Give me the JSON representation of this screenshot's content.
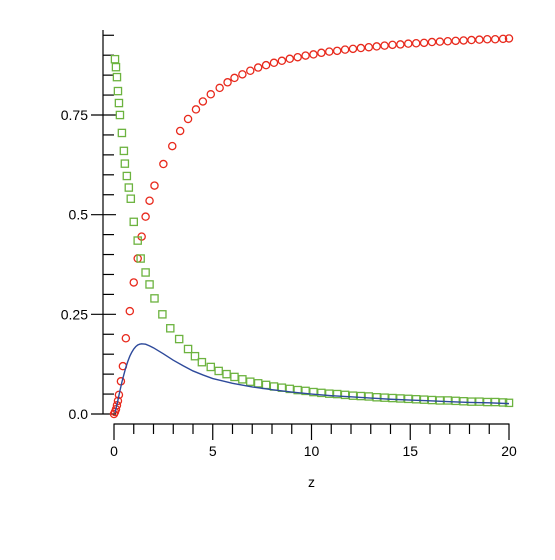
{
  "chart_data": {
    "type": "scatter",
    "xlabel": "z",
    "ylabel": "",
    "xlim": [
      0,
      20
    ],
    "ylim": [
      0,
      0.95
    ],
    "x_ticks": [
      0,
      5,
      10,
      15,
      20
    ],
    "x_tick_labels": [
      "0",
      "5",
      "10",
      "15",
      "20"
    ],
    "y_ticks": [
      0,
      0.25,
      0.5,
      0.75
    ],
    "y_tick_labels": [
      "0.0",
      "0.25",
      "0.5",
      "0.75"
    ],
    "x_minor_step": 1,
    "y_minor_step": 0.05,
    "grid": false,
    "legend": "none",
    "series": [
      {
        "marker": "circle-open",
        "color": "#e8291c",
        "points": [
          [
            0.0,
            0.0
          ],
          [
            0.05,
            0.005
          ],
          [
            0.1,
            0.012
          ],
          [
            0.15,
            0.022
          ],
          [
            0.2,
            0.033
          ],
          [
            0.25,
            0.048
          ],
          [
            0.35,
            0.082
          ],
          [
            0.45,
            0.12
          ],
          [
            0.6,
            0.19
          ],
          [
            0.8,
            0.258
          ],
          [
            1.0,
            0.33
          ],
          [
            1.2,
            0.39
          ],
          [
            1.4,
            0.445
          ],
          [
            1.6,
            0.495
          ],
          [
            1.8,
            0.535
          ],
          [
            2.05,
            0.573
          ],
          [
            2.5,
            0.627
          ],
          [
            2.95,
            0.672
          ],
          [
            3.35,
            0.71
          ],
          [
            3.75,
            0.74
          ],
          [
            4.15,
            0.764
          ],
          [
            4.5,
            0.784
          ],
          [
            4.9,
            0.802
          ],
          [
            5.35,
            0.818
          ],
          [
            5.75,
            0.832
          ],
          [
            6.1,
            0.843
          ],
          [
            6.5,
            0.852
          ],
          [
            6.9,
            0.861
          ],
          [
            7.3,
            0.869
          ],
          [
            7.7,
            0.875
          ],
          [
            8.1,
            0.881
          ],
          [
            8.5,
            0.886
          ],
          [
            8.9,
            0.891
          ],
          [
            9.3,
            0.895
          ],
          [
            9.7,
            0.899
          ],
          [
            10.1,
            0.902
          ],
          [
            10.5,
            0.906
          ],
          [
            10.9,
            0.909
          ],
          [
            11.3,
            0.911
          ],
          [
            11.7,
            0.914
          ],
          [
            12.1,
            0.916
          ],
          [
            12.5,
            0.918
          ],
          [
            12.9,
            0.92
          ],
          [
            13.3,
            0.922
          ],
          [
            13.7,
            0.924
          ],
          [
            14.1,
            0.926
          ],
          [
            14.5,
            0.927
          ],
          [
            14.9,
            0.929
          ],
          [
            15.3,
            0.93
          ],
          [
            15.7,
            0.931
          ],
          [
            16.1,
            0.933
          ],
          [
            16.5,
            0.934
          ],
          [
            16.9,
            0.935
          ],
          [
            17.3,
            0.936
          ],
          [
            17.7,
            0.937
          ],
          [
            18.1,
            0.938
          ],
          [
            18.5,
            0.939
          ],
          [
            18.9,
            0.94
          ],
          [
            19.3,
            0.94
          ],
          [
            19.7,
            0.941
          ],
          [
            20.0,
            0.942
          ]
        ]
      },
      {
        "marker": "square-open",
        "color": "#6cb33f",
        "points": [
          [
            0.05,
            0.89
          ],
          [
            0.1,
            0.87
          ],
          [
            0.15,
            0.845
          ],
          [
            0.2,
            0.81
          ],
          [
            0.25,
            0.78
          ],
          [
            0.3,
            0.75
          ],
          [
            0.4,
            0.705
          ],
          [
            0.5,
            0.66
          ],
          [
            0.55,
            0.628
          ],
          [
            0.65,
            0.597
          ],
          [
            0.75,
            0.568
          ],
          [
            0.85,
            0.54
          ],
          [
            1.0,
            0.482
          ],
          [
            1.2,
            0.435
          ],
          [
            1.35,
            0.39
          ],
          [
            1.6,
            0.355
          ],
          [
            1.8,
            0.325
          ],
          [
            2.05,
            0.29
          ],
          [
            2.45,
            0.25
          ],
          [
            2.85,
            0.215
          ],
          [
            3.3,
            0.188
          ],
          [
            3.75,
            0.163
          ],
          [
            4.1,
            0.145
          ],
          [
            4.45,
            0.13
          ],
          [
            4.9,
            0.118
          ],
          [
            5.3,
            0.108
          ],
          [
            5.7,
            0.1
          ],
          [
            6.1,
            0.093
          ],
          [
            6.5,
            0.087
          ],
          [
            6.9,
            0.081
          ],
          [
            7.3,
            0.077
          ],
          [
            7.7,
            0.073
          ],
          [
            8.1,
            0.069
          ],
          [
            8.5,
            0.066
          ],
          [
            8.9,
            0.063
          ],
          [
            9.3,
            0.06
          ],
          [
            9.7,
            0.058
          ],
          [
            10.1,
            0.055
          ],
          [
            10.5,
            0.053
          ],
          [
            10.9,
            0.051
          ],
          [
            11.3,
            0.05
          ],
          [
            11.7,
            0.048
          ],
          [
            12.1,
            0.046
          ],
          [
            12.5,
            0.045
          ],
          [
            12.9,
            0.044
          ],
          [
            13.3,
            0.042
          ],
          [
            13.7,
            0.041
          ],
          [
            14.1,
            0.04
          ],
          [
            14.5,
            0.039
          ],
          [
            14.9,
            0.038
          ],
          [
            15.3,
            0.037
          ],
          [
            15.7,
            0.036
          ],
          [
            16.1,
            0.035
          ],
          [
            16.5,
            0.034
          ],
          [
            16.9,
            0.034
          ],
          [
            17.3,
            0.033
          ],
          [
            17.7,
            0.032
          ],
          [
            18.1,
            0.031
          ],
          [
            18.5,
            0.031
          ],
          [
            18.9,
            0.03
          ],
          [
            19.3,
            0.03
          ],
          [
            19.7,
            0.029
          ],
          [
            20.0,
            0.028
          ]
        ]
      },
      {
        "marker": "line",
        "color": "#2e4a9b",
        "points": [
          [
            0.05,
            0.004
          ],
          [
            0.1,
            0.013
          ],
          [
            0.2,
            0.035
          ],
          [
            0.3,
            0.058
          ],
          [
            0.4,
            0.08
          ],
          [
            0.5,
            0.099
          ],
          [
            0.6,
            0.117
          ],
          [
            0.7,
            0.132
          ],
          [
            0.8,
            0.145
          ],
          [
            0.9,
            0.155
          ],
          [
            1.0,
            0.163
          ],
          [
            1.1,
            0.169
          ],
          [
            1.2,
            0.173
          ],
          [
            1.3,
            0.175
          ],
          [
            1.4,
            0.176
          ],
          [
            1.6,
            0.175
          ],
          [
            1.8,
            0.171
          ],
          [
            2.0,
            0.166
          ],
          [
            2.5,
            0.151
          ],
          [
            3.0,
            0.135
          ],
          [
            3.5,
            0.121
          ],
          [
            4.0,
            0.108
          ],
          [
            4.5,
            0.098
          ],
          [
            5.0,
            0.089
          ],
          [
            6.0,
            0.077
          ],
          [
            7.0,
            0.068
          ],
          [
            8.0,
            0.061
          ],
          [
            9.0,
            0.055
          ],
          [
            10.0,
            0.05
          ],
          [
            11.0,
            0.046
          ],
          [
            12.0,
            0.043
          ],
          [
            13.0,
            0.04
          ],
          [
            14.0,
            0.037
          ],
          [
            15.0,
            0.035
          ],
          [
            16.0,
            0.033
          ],
          [
            17.0,
            0.031
          ],
          [
            18.0,
            0.029
          ],
          [
            19.0,
            0.028
          ],
          [
            20.0,
            0.026
          ]
        ]
      }
    ]
  }
}
